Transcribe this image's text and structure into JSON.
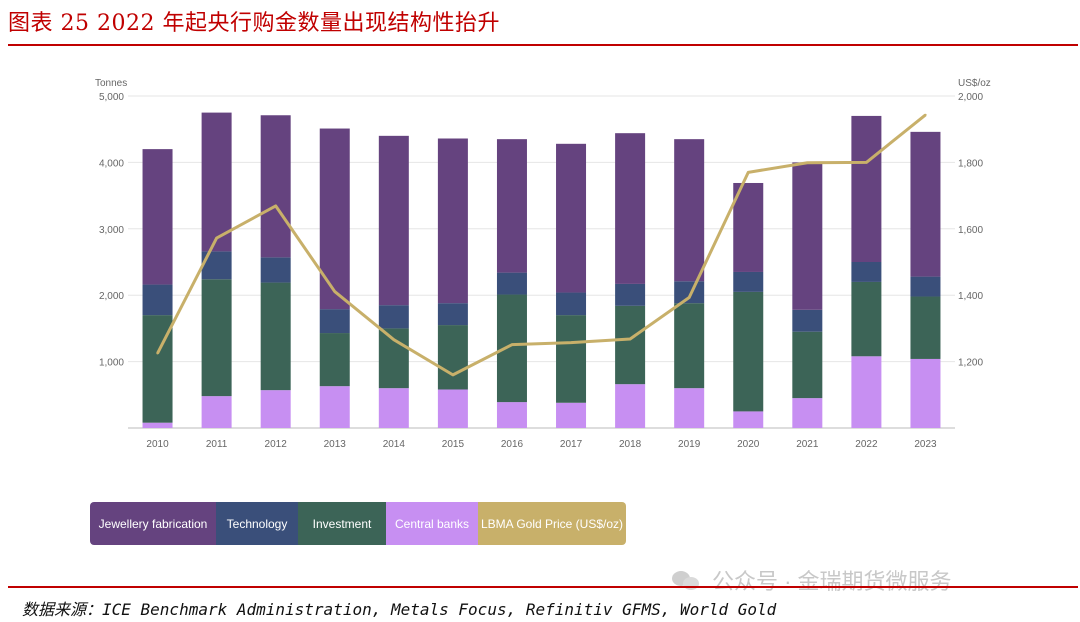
{
  "title": "图表 25  2022 年起央行购金数量出现结构性抬升",
  "source": "数据来源：ICE Benchmark Administration, Metals Focus, Refinitiv GFMS, World Gold",
  "watermark": "公众号 · 金瑞期货微服务",
  "colors": {
    "title": "#c00000",
    "jewellery": "#65437f",
    "technology": "#3a4f7a",
    "investment": "#3c6457",
    "central_banks": "#c78ff2",
    "gold_price": "#c8b06a",
    "grid": "#e6e6e6",
    "axis_text": "#666666"
  },
  "chart_data": {
    "type": "bar",
    "stacked": true,
    "left_axis_unit": "Tonnes",
    "right_axis_unit": "US$/oz",
    "categories": [
      "2010",
      "2011",
      "2012",
      "2013",
      "2014",
      "2015",
      "2016",
      "2017",
      "2018",
      "2019",
      "2020",
      "2021",
      "2022",
      "2023"
    ],
    "left_ylim": [
      0,
      5000
    ],
    "left_ticks": [
      "1,000",
      "2,000",
      "3,000",
      "4,000",
      "5,000"
    ],
    "right_ylim": [
      1000,
      2000
    ],
    "right_ticks": [
      "1,200",
      "1,400",
      "1,600",
      "1,800",
      "2,000"
    ],
    "grid": true,
    "legend_position": "bottom",
    "series": [
      {
        "name": "Central banks",
        "values": [
          80,
          480,
          570,
          630,
          600,
          580,
          390,
          380,
          660,
          600,
          250,
          450,
          1080,
          1040
        ]
      },
      {
        "name": "Investment",
        "values": [
          1620,
          1760,
          1620,
          800,
          900,
          970,
          1620,
          1320,
          1180,
          1280,
          1800,
          1000,
          1120,
          940
        ]
      },
      {
        "name": "Technology",
        "values": [
          460,
          420,
          380,
          360,
          350,
          330,
          330,
          340,
          330,
          330,
          300,
          330,
          300,
          300
        ]
      },
      {
        "name": "Jewellery fabrication",
        "values": [
          2040,
          2090,
          2140,
          2720,
          2550,
          2480,
          2010,
          2240,
          2270,
          2140,
          1340,
          2220,
          2200,
          2180
        ]
      }
    ],
    "line": {
      "name": "LBMA Gold Price (US$/oz)",
      "values": [
        1225,
        1572,
        1669,
        1411,
        1266,
        1160,
        1251,
        1257,
        1268,
        1393,
        1770,
        1799,
        1800,
        1943
      ]
    },
    "legend": [
      "Jewellery fabrication",
      "Technology",
      "Investment",
      "Central banks",
      "LBMA Gold Price (US$/oz)"
    ]
  }
}
